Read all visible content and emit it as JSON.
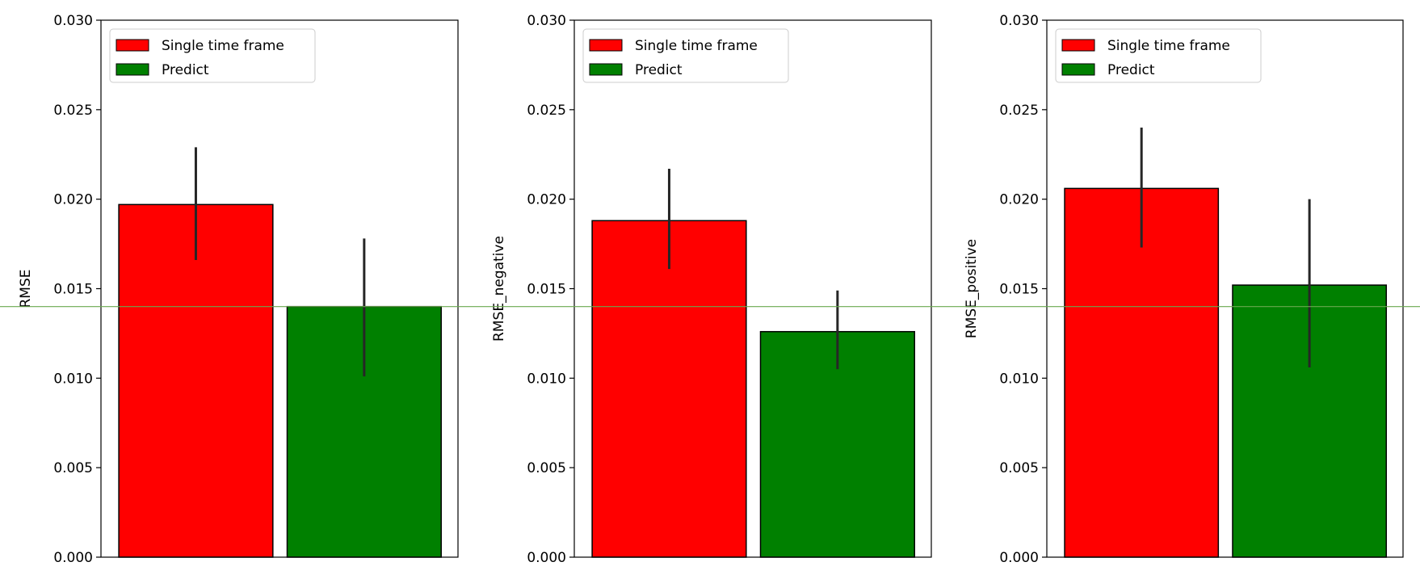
{
  "colors": {
    "single": "#ff0000",
    "predict": "#008000",
    "error_bar": "#262626",
    "reference_line": "#6aa84f",
    "axes": "#000000",
    "legend_border": "#cccccc"
  },
  "chart_data": [
    {
      "type": "bar",
      "title": "",
      "xlabel": "",
      "ylabel": "RMSE",
      "ylim": [
        0,
        0.03
      ],
      "yticks": [
        "0.000",
        "0.005",
        "0.010",
        "0.015",
        "0.020",
        "0.025",
        "0.030"
      ],
      "legend": "top-left",
      "grid": false,
      "series": [
        {
          "name": "Single time frame",
          "value": 0.0197,
          "error": [
            0.0166,
            0.0229
          ]
        },
        {
          "name": "Predict",
          "value": 0.014,
          "error": [
            0.0101,
            0.0178
          ]
        }
      ]
    },
    {
      "type": "bar",
      "title": "",
      "xlabel": "",
      "ylabel": "RMSE_negative",
      "ylim": [
        0,
        0.03
      ],
      "yticks": [
        "0.000",
        "0.005",
        "0.010",
        "0.015",
        "0.020",
        "0.025",
        "0.030"
      ],
      "legend": "top-left",
      "grid": false,
      "series": [
        {
          "name": "Single time frame",
          "value": 0.0188,
          "error": [
            0.0161,
            0.0217
          ]
        },
        {
          "name": "Predict",
          "value": 0.0126,
          "error": [
            0.0105,
            0.0149
          ]
        }
      ]
    },
    {
      "type": "bar",
      "title": "",
      "xlabel": "",
      "ylabel": "RMSE_positive",
      "ylim": [
        0,
        0.03
      ],
      "yticks": [
        "0.000",
        "0.005",
        "0.010",
        "0.015",
        "0.020",
        "0.025",
        "0.030"
      ],
      "legend": "top-left",
      "grid": false,
      "series": [
        {
          "name": "Single time frame",
          "value": 0.0206,
          "error": [
            0.0173,
            0.024
          ]
        },
        {
          "name": "Predict",
          "value": 0.0152,
          "error": [
            0.0106,
            0.02
          ]
        }
      ]
    }
  ],
  "reference_line": {
    "value": 0.014
  }
}
